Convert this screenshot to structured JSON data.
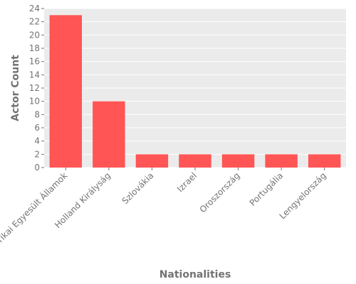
{
  "chart_data": {
    "type": "bar",
    "categories": [
      "Amerikai Egyesült Államok",
      "Holland Királyság",
      "Szlovákia",
      "Izrael",
      "Oroszország",
      "Portugália",
      "Lengyelország"
    ],
    "values": [
      23,
      10,
      2,
      2,
      2,
      2,
      2
    ],
    "xlabel": "Nationalities",
    "ylabel": "Actor Count",
    "ylim": [
      0,
      24
    ],
    "yticks": [
      0,
      2,
      4,
      6,
      8,
      10,
      12,
      14,
      16,
      18,
      20,
      22,
      24
    ],
    "grid": true,
    "bar_color": "#ff5555",
    "background_color": "#ebebeb",
    "grid_color": "#ffffff",
    "text_color": "#737373"
  }
}
